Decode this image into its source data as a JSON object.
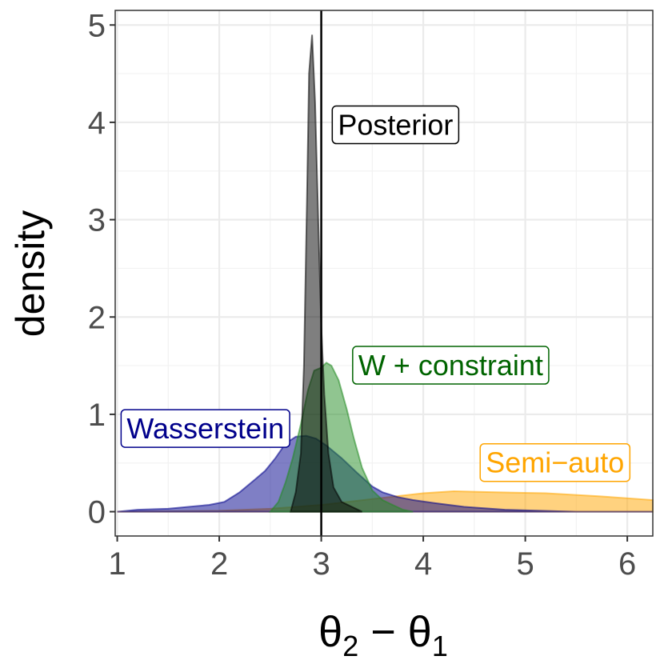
{
  "chart_data": {
    "type": "area",
    "xlabel": {
      "main": "θ",
      "sub1": "2",
      "minus": " − ",
      "main2": "θ",
      "sub2": "1"
    },
    "ylabel": "density",
    "xlim": [
      0.98,
      6.25
    ],
    "ylim": [
      -0.25,
      5.15
    ],
    "x_ticks": [
      1,
      2,
      3,
      4,
      5,
      6
    ],
    "y_ticks": [
      0,
      1,
      2,
      3,
      4,
      5
    ],
    "grid": true,
    "vline": 3,
    "series": [
      {
        "key": "semi_auto",
        "color": "#FFA500",
        "points": [
          [
            1.0,
            0.0
          ],
          [
            2.0,
            0.01
          ],
          [
            2.5,
            0.03
          ],
          [
            3.0,
            0.07
          ],
          [
            3.5,
            0.13
          ],
          [
            4.0,
            0.19
          ],
          [
            4.3,
            0.21
          ],
          [
            4.7,
            0.2
          ],
          [
            5.2,
            0.19
          ],
          [
            5.7,
            0.16
          ],
          [
            6.25,
            0.12
          ]
        ]
      },
      {
        "key": "wasserstein",
        "color": "#00008B",
        "points": [
          [
            1.0,
            0.0
          ],
          [
            1.2,
            0.02
          ],
          [
            1.5,
            0.03
          ],
          [
            1.7,
            0.05
          ],
          [
            1.9,
            0.07
          ],
          [
            2.05,
            0.1
          ],
          [
            2.2,
            0.2
          ],
          [
            2.35,
            0.33
          ],
          [
            2.45,
            0.42
          ],
          [
            2.55,
            0.55
          ],
          [
            2.65,
            0.7
          ],
          [
            2.75,
            0.77
          ],
          [
            2.85,
            0.78
          ],
          [
            2.95,
            0.75
          ],
          [
            3.05,
            0.68
          ],
          [
            3.2,
            0.55
          ],
          [
            3.35,
            0.4
          ],
          [
            3.5,
            0.26
          ],
          [
            3.6,
            0.2
          ],
          [
            3.75,
            0.15
          ],
          [
            3.9,
            0.12
          ],
          [
            4.1,
            0.09
          ],
          [
            4.4,
            0.05
          ],
          [
            4.8,
            0.02
          ],
          [
            5.5,
            0.0
          ],
          [
            6.25,
            0.0
          ]
        ]
      },
      {
        "key": "w_constraint",
        "color": "#228B22",
        "points": [
          [
            2.5,
            0.0
          ],
          [
            2.58,
            0.1
          ],
          [
            2.65,
            0.3
          ],
          [
            2.72,
            0.55
          ],
          [
            2.8,
            0.9
          ],
          [
            2.87,
            1.25
          ],
          [
            2.93,
            1.45
          ],
          [
            3.0,
            1.48
          ],
          [
            3.05,
            1.53
          ],
          [
            3.1,
            1.5
          ],
          [
            3.17,
            1.35
          ],
          [
            3.25,
            1.05
          ],
          [
            3.32,
            0.75
          ],
          [
            3.4,
            0.45
          ],
          [
            3.5,
            0.22
          ],
          [
            3.6,
            0.12
          ],
          [
            3.7,
            0.07
          ],
          [
            3.8,
            0.02
          ],
          [
            3.9,
            0.0
          ]
        ]
      },
      {
        "key": "posterior",
        "color": "#000000",
        "points": [
          [
            2.7,
            0.0
          ],
          [
            2.75,
            0.2
          ],
          [
            2.8,
            0.6
          ],
          [
            2.83,
            1.5
          ],
          [
            2.86,
            3.2
          ],
          [
            2.88,
            4.5
          ],
          [
            2.91,
            4.9
          ],
          [
            2.94,
            4.2
          ],
          [
            2.97,
            3.0
          ],
          [
            3.0,
            1.9
          ],
          [
            3.03,
            1.2
          ],
          [
            3.07,
            0.6
          ],
          [
            3.12,
            0.25
          ],
          [
            3.2,
            0.1
          ],
          [
            3.3,
            0.05
          ],
          [
            3.4,
            0.0
          ]
        ]
      }
    ],
    "annotations": [
      {
        "key": "posterior",
        "text": "Posterior",
        "color": "#000000",
        "x": 3.1,
        "y": 3.95,
        "anchor": "start"
      },
      {
        "key": "w_constraint",
        "text": "W + constraint",
        "color": "#006400",
        "x": 3.3,
        "y": 1.48,
        "anchor": "start"
      },
      {
        "key": "wasserstein",
        "text": "Wasserstein",
        "color": "#00008B",
        "x": 1.03,
        "y": 0.83,
        "anchor": "start"
      },
      {
        "key": "semi_auto",
        "text": "Semi−auto",
        "color": "#FFA500",
        "x": 4.55,
        "y": 0.48,
        "anchor": "start"
      }
    ]
  }
}
